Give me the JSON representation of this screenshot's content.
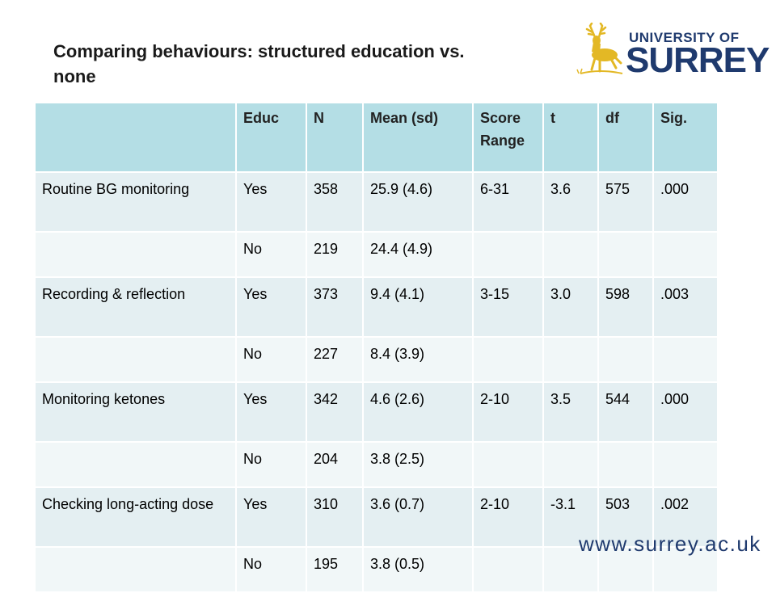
{
  "slide": {
    "title": "Comparing behaviours: structured education vs. none",
    "logo": {
      "university_line": "UNIVERSITY OF",
      "name": "SURREY",
      "mark": "stag-icon"
    },
    "footer_url": "www.surrey.ac.uk"
  },
  "table": {
    "headers": [
      "",
      "Educ",
      "N",
      "Mean (sd)",
      "Score Range",
      "t",
      "df",
      "Sig."
    ],
    "rows": [
      [
        "Routine BG monitoring",
        "Yes",
        "358",
        "25.9 (4.6)",
        "6-31",
        "3.6",
        "575",
        ".000"
      ],
      [
        "",
        "No",
        "219",
        "24.4 (4.9)",
        "",
        "",
        "",
        ""
      ],
      [
        "Recording & reflection",
        "Yes",
        "373",
        "9.4 (4.1)",
        "3-15",
        "3.0",
        "598",
        ".003"
      ],
      [
        "",
        "No",
        "227",
        "8.4 (3.9)",
        "",
        "",
        "",
        ""
      ],
      [
        "Monitoring ketones",
        "Yes",
        "342",
        "4.6 (2.6)",
        "2-10",
        "3.5",
        "544",
        ".000"
      ],
      [
        "",
        "No",
        "204",
        "3.8 (2.5)",
        "",
        "",
        "",
        ""
      ],
      [
        "Checking long-acting dose",
        "Yes",
        "310",
        "3.6 (0.7)",
        "2-10",
        "-3.1",
        "503",
        ".002"
      ],
      [
        "",
        "No",
        "195",
        "3.8 (0.5)",
        "",
        "",
        "",
        ""
      ]
    ]
  },
  "colors": {
    "header_bg": "#b4dee5",
    "row_odd_bg": "#e4eff2",
    "row_even_bg": "#f1f7f8",
    "brand_blue": "#1f3a6e",
    "brand_gold": "#e3b825"
  }
}
